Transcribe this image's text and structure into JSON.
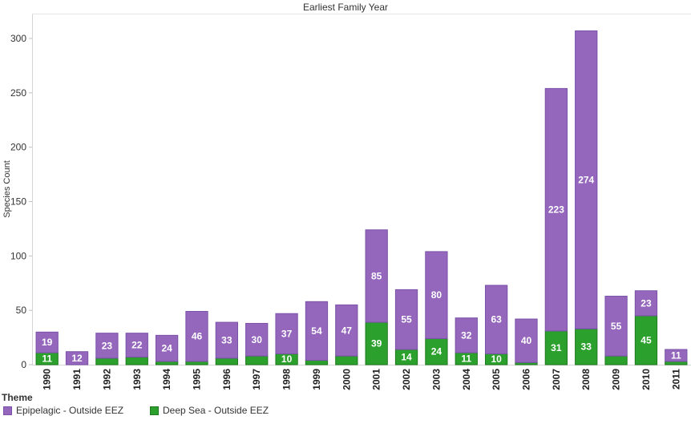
{
  "chart_data": {
    "type": "bar",
    "stacked": true,
    "title": "Earliest Family Year",
    "xlabel": "",
    "ylabel": "Species Count",
    "ylim": [
      0,
      315
    ],
    "yticks": [
      0,
      50,
      100,
      150,
      200,
      250,
      300
    ],
    "grid": false,
    "legend_position": "bottom-left",
    "legend_title": "Theme",
    "categories": [
      "1990",
      "1991",
      "1992",
      "1993",
      "1994",
      "1995",
      "1996",
      "1997",
      "1998",
      "1999",
      "2000",
      "2001",
      "2002",
      "2003",
      "2004",
      "2005",
      "2006",
      "2007",
      "2008",
      "2009",
      "2010",
      "2011"
    ],
    "series": [
      {
        "name": "Deep Sea - Outside EEZ",
        "color": "#2ca02c",
        "values": [
          11,
          0,
          6,
          7,
          3,
          3,
          6,
          8,
          10,
          4,
          8,
          39,
          14,
          24,
          11,
          10,
          2,
          31,
          33,
          8,
          45,
          3
        ],
        "labels": [
          "11",
          "",
          "",
          "",
          "",
          "",
          "",
          "",
          "10",
          "",
          "",
          "39",
          "14",
          "24",
          "11",
          "10",
          "",
          "31",
          "33",
          "",
          "45",
          ""
        ]
      },
      {
        "name": "Epipelagic - Outside EEZ",
        "color": "#9467bd",
        "values": [
          19,
          12,
          23,
          22,
          24,
          46,
          33,
          30,
          37,
          54,
          47,
          85,
          55,
          80,
          32,
          63,
          40,
          223,
          274,
          55,
          23,
          11
        ],
        "labels": [
          "19",
          "12",
          "23",
          "22",
          "24",
          "46",
          "33",
          "30",
          "37",
          "54",
          "47",
          "85",
          "55",
          "80",
          "32",
          "63",
          "40",
          "223",
          "274",
          "55",
          "23",
          "11"
        ]
      }
    ]
  }
}
